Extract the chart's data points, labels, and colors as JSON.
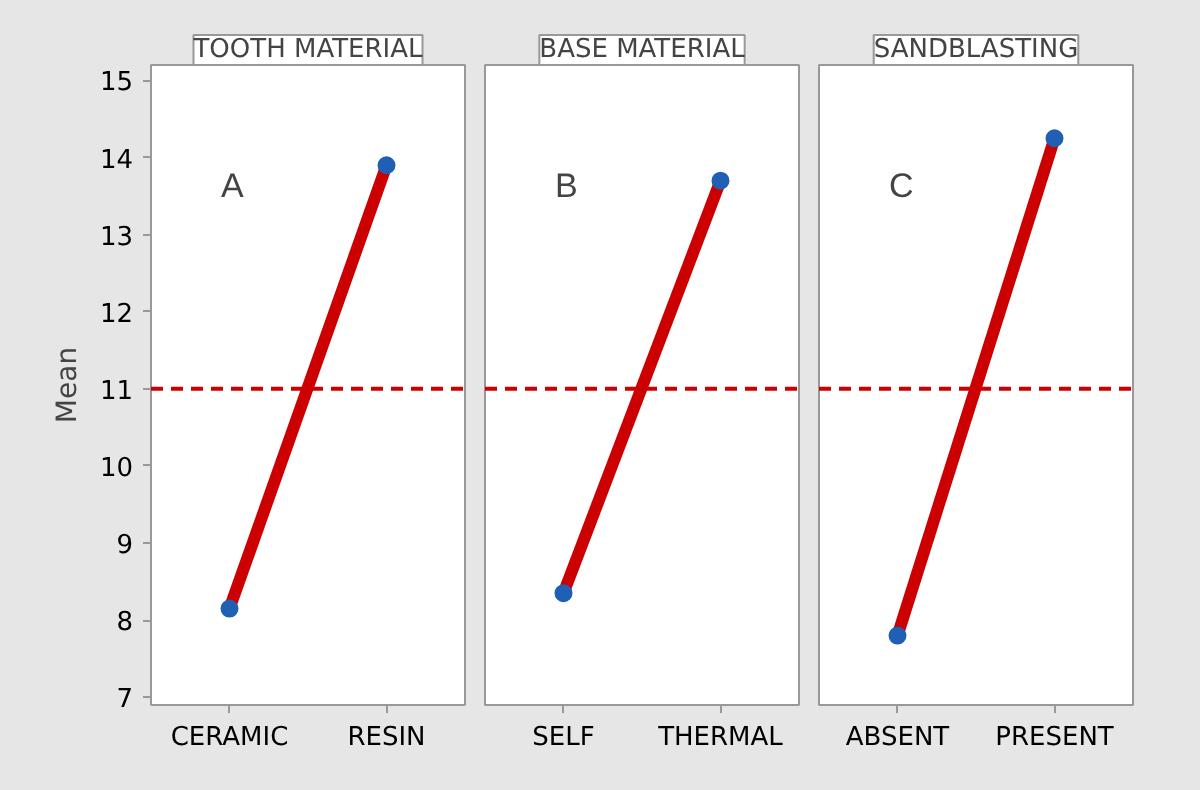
{
  "chart_data": [
    {
      "type": "line",
      "title": "TOOTH MATERIAL",
      "ylabel": "Mean",
      "categories": [
        "CERAMIC",
        "RESIN"
      ],
      "series": [
        {
          "color": "#cc0000",
          "values": [
            8.15,
            13.9
          ]
        },
        {
          "type": "scatter",
          "color": "#1f5fb4",
          "marker": "circle",
          "values": [
            8.15,
            13.9
          ]
        }
      ],
      "ylim": [
        6.9,
        15.2
      ],
      "yticks": [
        7,
        8,
        9,
        10,
        11,
        12,
        13,
        14,
        15
      ],
      "grid": false,
      "annotations": [
        "A"
      ],
      "ref_lines": [
        {
          "axis": "y",
          "value": 11,
          "color": "#cc0000",
          "line_style": "dashed"
        }
      ]
    },
    {
      "type": "line",
      "title": "BASE MATERIAL",
      "categories": [
        "SELF",
        "THERMAL"
      ],
      "series": [
        {
          "color": "#cc0000",
          "values": [
            8.35,
            13.7
          ]
        },
        {
          "type": "scatter",
          "color": "#1f5fb4",
          "marker": "circle",
          "values": [
            8.35,
            13.7
          ]
        }
      ],
      "ylim": [
        6.9,
        15.2
      ],
      "yticks": [
        7,
        8,
        9,
        10,
        11,
        12,
        13,
        14,
        15
      ],
      "tick_labels": "x",
      "grid": false,
      "annotations": [
        "B"
      ],
      "ref_lines": [
        {
          "axis": "y",
          "value": 11,
          "color": "#cc0000",
          "line_style": "dashed"
        }
      ]
    },
    {
      "type": "line",
      "title": "SANDBLASTING",
      "categories": [
        "ABSENT",
        "PRESENT"
      ],
      "series": [
        {
          "color": "#cc0000",
          "values": [
            7.8,
            14.25
          ]
        },
        {
          "type": "scatter",
          "color": "#1f5fb4",
          "marker": "circle",
          "values": [
            7.8,
            14.25
          ]
        }
      ],
      "ylim": [
        6.9,
        15.2
      ],
      "yticks": [
        7,
        8,
        9,
        10,
        11,
        12,
        13,
        14,
        15
      ],
      "tick_labels": "x",
      "grid": false,
      "annotations": [
        "C"
      ],
      "ref_lines": [
        {
          "axis": "y",
          "value": 11,
          "color": "#cc0000",
          "line_style": "dashed"
        }
      ]
    }
  ]
}
